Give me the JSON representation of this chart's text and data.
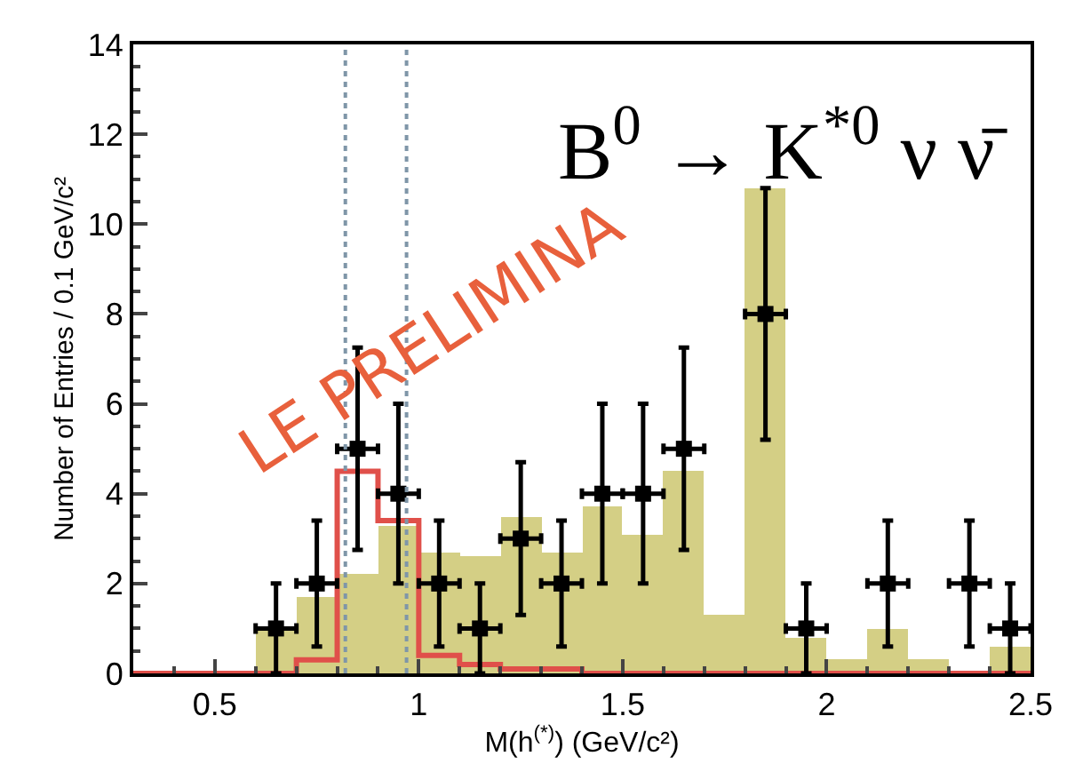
{
  "chart_data": {
    "type": "histogram",
    "xlabel": "M(h$^{(*)}$) (GeV/c²)",
    "ylabel": "Number of Entries / 0.1 GeV/c²",
    "bins": [
      0.3,
      0.4,
      0.5,
      0.6,
      0.7,
      0.8,
      0.9,
      1.0,
      1.1,
      1.2,
      1.3,
      1.4,
      1.5,
      1.6,
      1.7,
      1.8,
      1.9,
      2.0,
      2.1,
      2.2,
      2.3,
      2.4,
      2.5
    ],
    "series": [
      {
        "color": "#d4cf85",
        "values": [
          0,
          0,
          0,
          1.0,
          1.7,
          2.2,
          3.3,
          2.7,
          2.6,
          3.5,
          2.7,
          3.7,
          3.1,
          4.5,
          1.3,
          10.8,
          0.8,
          0.3,
          1.0,
          0.3,
          0,
          0.6
        ]
      },
      {
        "type": "step",
        "color": "#e0504a",
        "x": [
          0.3,
          0.4,
          0.5,
          0.6,
          0.7,
          0.8,
          0.9,
          1.0,
          1.1,
          1.2,
          1.3,
          1.4,
          1.5,
          1.6,
          1.7,
          1.8,
          1.9,
          2.0,
          2.1,
          2.2,
          2.3,
          2.4,
          2.5
        ],
        "values": [
          0,
          0,
          0,
          0,
          0.3,
          4.5,
          3.4,
          0.4,
          0.2,
          0.1,
          0.1,
          0,
          0,
          0,
          0,
          0,
          0,
          0,
          0,
          0,
          0,
          0,
          0
        ]
      },
      {
        "type": "scatter",
        "color": "#000000",
        "marker": "square",
        "x": [
          0.65,
          0.75,
          0.85,
          0.95,
          1.05,
          1.15,
          1.25,
          1.35,
          1.45,
          1.55,
          1.65,
          1.85,
          1.95,
          2.15,
          2.35,
          2.45
        ],
        "values": [
          1,
          2,
          5,
          4,
          2,
          1,
          3,
          2,
          4,
          4,
          5,
          8,
          1,
          2,
          2,
          1
        ],
        "errors": [
          [
            0,
            2
          ],
          [
            0.6,
            3.4
          ],
          [
            2.75,
            7.25
          ],
          [
            2,
            6
          ],
          [
            0.6,
            3.4
          ],
          [
            0,
            2
          ],
          [
            1.3,
            4.7
          ],
          [
            0.6,
            3.4
          ],
          [
            2,
            6
          ],
          [
            2,
            6
          ],
          [
            2.75,
            7.25
          ],
          [
            5.2,
            10.8
          ],
          [
            0,
            2
          ],
          [
            0.6,
            3.4
          ],
          [
            0.6,
            3.4
          ],
          [
            0,
            2
          ]
        ],
        "xerrors": [
          0.05,
          0.05,
          0.05,
          0.05,
          0.05,
          0.05,
          0.05,
          0.05,
          0.05,
          0.05,
          0.05,
          0.05,
          0.05,
          0.05,
          0.05,
          0.05
        ]
      }
    ],
    "xlim": [
      0.3,
      2.5
    ],
    "xticks": [
      0.5,
      1,
      1.5,
      2,
      2.5
    ],
    "ylim": [
      0,
      14
    ],
    "yticks": [
      0,
      2,
      4,
      6,
      8,
      10,
      12,
      14
    ],
    "ref_lines": [
      {
        "axis": "x",
        "value": 0.82,
        "color": "#7f96a8",
        "line_style": "dotted"
      },
      {
        "axis": "x",
        "value": 0.97,
        "color": "#7f96a8",
        "line_style": "dotted"
      }
    ],
    "annotations": [
      {
        "text": "B$^{0}$ → K$^{*0}$ ν ν̄"
      },
      {
        "text": "LE PRELIMINA"
      }
    ]
  }
}
